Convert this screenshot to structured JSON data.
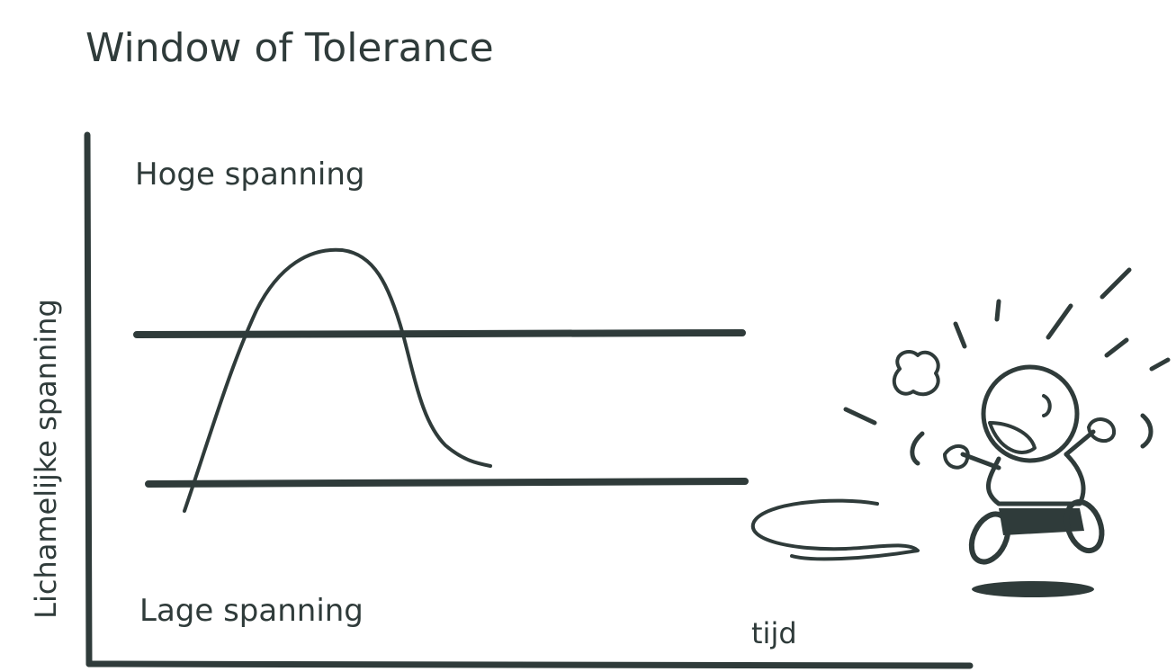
{
  "title": "Window of Tolerance",
  "labels": {
    "high": "Hoge spanning",
    "low": "Lage spanning"
  },
  "axes": {
    "y": "Lichamelijke spanning",
    "x": "tijd"
  }
}
